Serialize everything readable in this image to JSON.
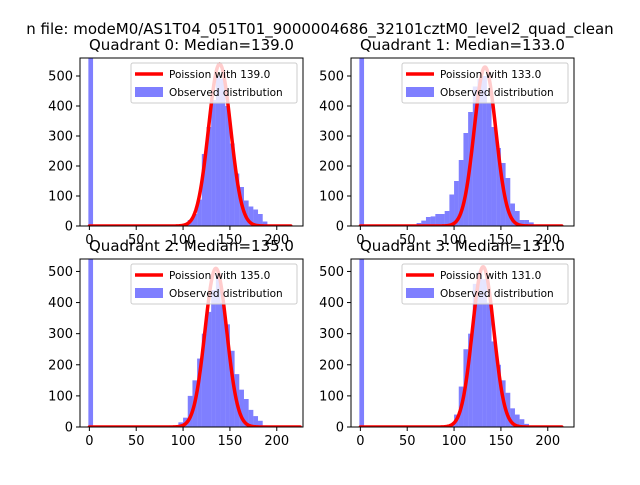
{
  "figure": {
    "suptitle": "n file: modeM0/AS1T04_051T01_9000004686_32101cztM0_level2_quad_clean"
  },
  "colors": {
    "hist": "#0000ff",
    "hist_opacity": 0.5,
    "fit": "#ff0000",
    "axis": "#000000",
    "background": "#ffffff"
  },
  "chart_data": [
    {
      "type": "bar",
      "title": "Quadrant 0: Median=139.0",
      "xticks": [
        0,
        50,
        100,
        150,
        200
      ],
      "yticks": [
        0,
        100,
        200,
        300,
        400,
        500
      ],
      "xlim": [
        -10,
        228
      ],
      "ylim": [
        0,
        560
      ],
      "legend_position": "top-right",
      "legend": [
        "Poission with 139.0",
        "Observed distribution"
      ],
      "fit": {
        "label": "Poission with 139.0",
        "mean": 139.0,
        "peak": 540,
        "x_range": [
          0,
          215
        ]
      },
      "hist_zero": 560,
      "histogram": {
        "bin_width": 5,
        "bin_starts": [
          100,
          105,
          110,
          115,
          120,
          125,
          130,
          135,
          140,
          145,
          150,
          155,
          160,
          165,
          170,
          175,
          180,
          185
        ],
        "counts": [
          8,
          20,
          40,
          88,
          240,
          330,
          420,
          500,
          490,
          400,
          275,
          175,
          130,
          85,
          65,
          55,
          40,
          15
        ]
      }
    },
    {
      "type": "bar",
      "title": "Quadrant 1: Median=133.0",
      "xticks": [
        0,
        50,
        100,
        150,
        200
      ],
      "yticks": [
        0,
        100,
        200,
        300,
        400,
        500
      ],
      "xlim": [
        -10,
        228
      ],
      "ylim": [
        0,
        560
      ],
      "legend_position": "top-right",
      "legend": [
        "Poission with 133.0",
        "Observed distribution"
      ],
      "fit": {
        "label": "Poission with 133.0",
        "mean": 133.0,
        "peak": 530,
        "x_range": [
          0,
          215
        ]
      },
      "hist_zero": 560,
      "histogram": {
        "bin_width": 5,
        "bin_starts": [
          55,
          60,
          65,
          70,
          75,
          80,
          85,
          90,
          95,
          100,
          105,
          110,
          115,
          120,
          125,
          130,
          135,
          140,
          145,
          150,
          155,
          160,
          165,
          170,
          175,
          180,
          185
        ],
        "counts": [
          5,
          10,
          18,
          30,
          32,
          40,
          40,
          50,
          105,
          150,
          220,
          310,
          380,
          465,
          490,
          500,
          410,
          330,
          260,
          210,
          160,
          75,
          50,
          20,
          20,
          12,
          5
        ]
      }
    },
    {
      "type": "bar",
      "title": "Quadrant 2: Median=135.0",
      "xticks": [
        0,
        50,
        100,
        150,
        200
      ],
      "yticks": [
        0,
        100,
        200,
        300,
        400,
        500
      ],
      "xlim": [
        -10,
        228
      ],
      "ylim": [
        0,
        540
      ],
      "legend_position": "top-right",
      "legend": [
        "Poission with 135.0",
        "Observed distribution"
      ],
      "fit": {
        "label": "Poission with 135.0",
        "mean": 135.0,
        "peak": 510,
        "x_range": [
          0,
          225
        ]
      },
      "hist_zero": 540,
      "histogram": {
        "bin_width": 5,
        "bin_starts": [
          70,
          85,
          95,
          100,
          105,
          110,
          115,
          120,
          125,
          130,
          135,
          140,
          145,
          150,
          155,
          160,
          165,
          170,
          175,
          180,
          185
        ],
        "counts": [
          4,
          5,
          15,
          30,
          100,
          150,
          220,
          300,
          370,
          440,
          490,
          400,
          330,
          245,
          170,
          120,
          90,
          55,
          35,
          20,
          5
        ]
      }
    },
    {
      "type": "bar",
      "title": "Quadrant 3: Median=131.0",
      "xticks": [
        0,
        50,
        100,
        150,
        200
      ],
      "yticks": [
        0,
        100,
        200,
        300,
        400,
        500
      ],
      "xlim": [
        -10,
        228
      ],
      "ylim": [
        0,
        540
      ],
      "legend_position": "top-right",
      "legend": [
        "Poission with 131.0",
        "Observed distribution"
      ],
      "fit": {
        "label": "Poission with 131.0",
        "mean": 131.0,
        "peak": 515,
        "x_range": [
          0,
          215
        ]
      },
      "hist_zero": 540,
      "histogram": {
        "bin_width": 5,
        "bin_starts": [
          95,
          100,
          105,
          110,
          115,
          120,
          125,
          130,
          135,
          140,
          145,
          150,
          155,
          160,
          165,
          170,
          175
        ],
        "counts": [
          10,
          40,
          130,
          250,
          300,
          460,
          500,
          475,
          400,
          275,
          200,
          150,
          110,
          60,
          40,
          25,
          10
        ]
      }
    }
  ]
}
